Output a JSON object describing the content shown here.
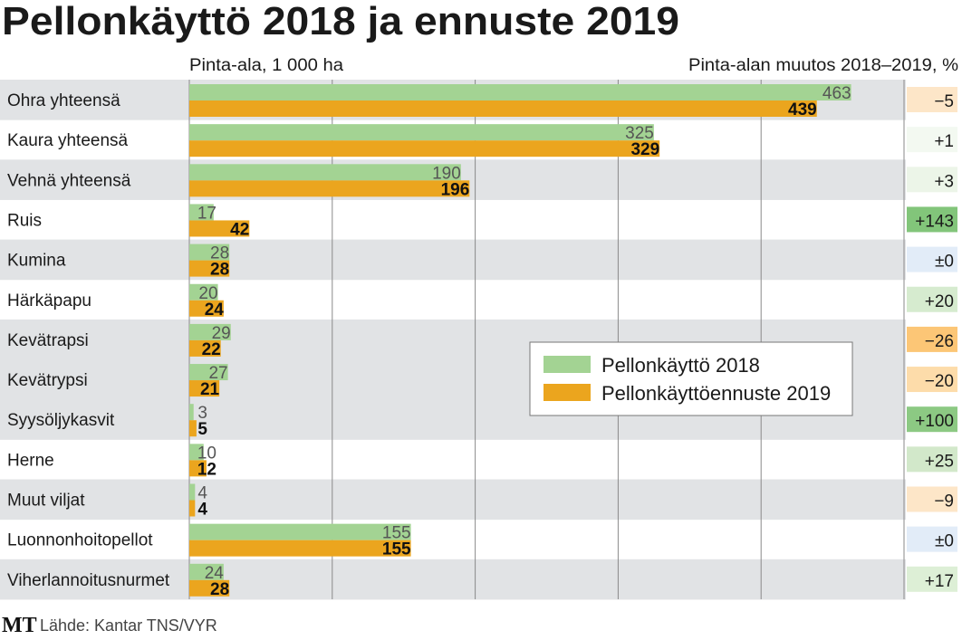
{
  "chart_data": {
    "type": "bar",
    "title": "Pellonkäyttö 2018 ja ennuste 2019",
    "xlabel": "Pinta-ala, 1 000 ha",
    "change_label": "Pinta-alan muutos 2018–2019, %",
    "xlim": [
      0,
      500
    ],
    "grid": true,
    "legend_position": "center-right",
    "categories": [
      "Ohra yhteensä",
      "Kaura yhteensä",
      "Vehnä yhteensä",
      "Ruis",
      "Kumina",
      "Härkäpapu",
      "Kevätrapsi",
      "Kevätrypsi",
      "Syysöljykasvit",
      "Herne",
      "Muut viljat",
      "Luonnonhoitopellot",
      "Viherlannoitusnurmet"
    ],
    "row_shaded": [
      true,
      false,
      true,
      false,
      true,
      false,
      true,
      true,
      true,
      false,
      true,
      false,
      true
    ],
    "series": [
      {
        "name": "Pellonkäyttö 2018",
        "color": "#a3d393",
        "values": [
          463,
          325,
          190,
          17,
          28,
          20,
          29,
          27,
          3,
          10,
          4,
          155,
          24
        ]
      },
      {
        "name": "Pellonkäyttöennuste 2019",
        "color": "#eba51e",
        "values": [
          439,
          329,
          196,
          42,
          28,
          24,
          22,
          21,
          5,
          12,
          4,
          155,
          28
        ]
      }
    ],
    "change": [
      "−5",
      "+1",
      "+3",
      "+143",
      "±0",
      "+20",
      "−26",
      "−20",
      "+100",
      "+25",
      "−9",
      "±0",
      "+17"
    ],
    "change_colors": [
      "#fde6c8",
      "#f3f9f1",
      "#ecf5e8",
      "#82c57a",
      "#e2ecf8",
      "#d6ebcf",
      "#fcc676",
      "#fddcaa",
      "#8cc983",
      "#d2e8ca",
      "#fde6c8",
      "#e2ecf8",
      "#ddefd6"
    ]
  },
  "footer": {
    "logo": "MT",
    "source": "Lähde: Kantar TNS/VYR"
  }
}
